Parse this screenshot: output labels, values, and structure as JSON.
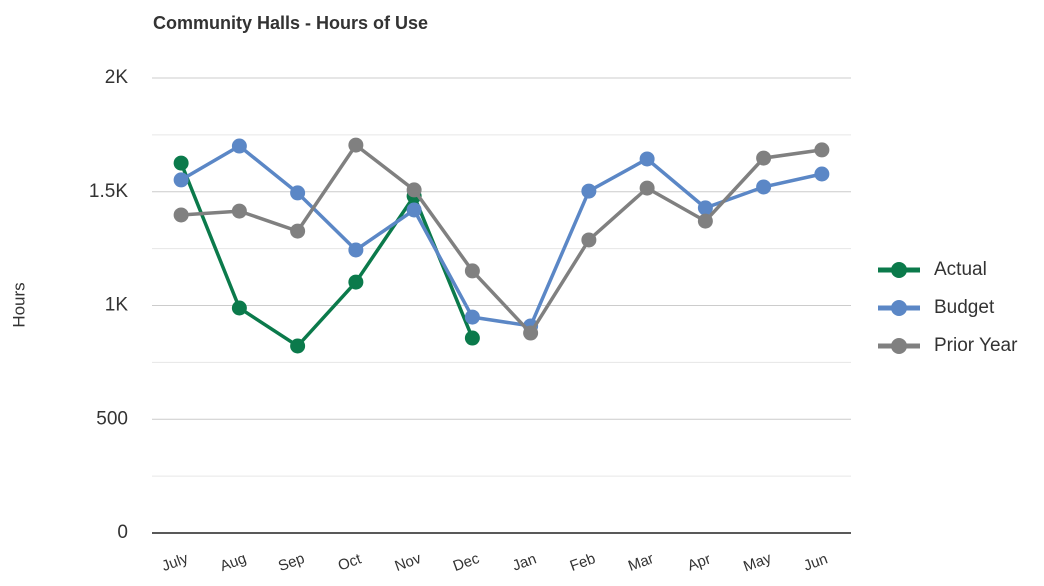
{
  "chart_data": {
    "type": "line",
    "title": "Community Halls - Hours of Use",
    "y_label": "Hours",
    "categories": [
      "July",
      "Aug",
      "Sep",
      "Oct",
      "Nov",
      "Dec",
      "Jan",
      "Feb",
      "Mar",
      "Apr",
      "May",
      "Jun"
    ],
    "series": [
      {
        "name": "Actual",
        "color": "#0b7a4b",
        "values": [
          1626,
          989,
          822,
          1103,
          1481,
          857,
          null,
          null,
          null,
          null,
          null,
          null
        ]
      },
      {
        "name": "Budget",
        "color": "#5b87c6",
        "values": [
          1552,
          1701,
          1495,
          1244,
          1420,
          949,
          910,
          1503,
          1644,
          1429,
          1521,
          1578
        ]
      },
      {
        "name": "Prior Year",
        "color": "#808080",
        "values": [
          1398,
          1415,
          1327,
          1705,
          1508,
          1152,
          879,
          1288,
          1516,
          1371,
          1648,
          1684
        ]
      }
    ],
    "ylim": [
      0,
      2000
    ],
    "yticks": [
      0,
      500,
      {
        "value": 1000,
        "label": "1K"
      },
      {
        "value": 1500,
        "label": "1.5K"
      },
      {
        "value": 2000,
        "label": "2K"
      }
    ],
    "minor_yticks": [
      250,
      750,
      1250,
      1750
    ],
    "grid": true,
    "legend": "right"
  }
}
